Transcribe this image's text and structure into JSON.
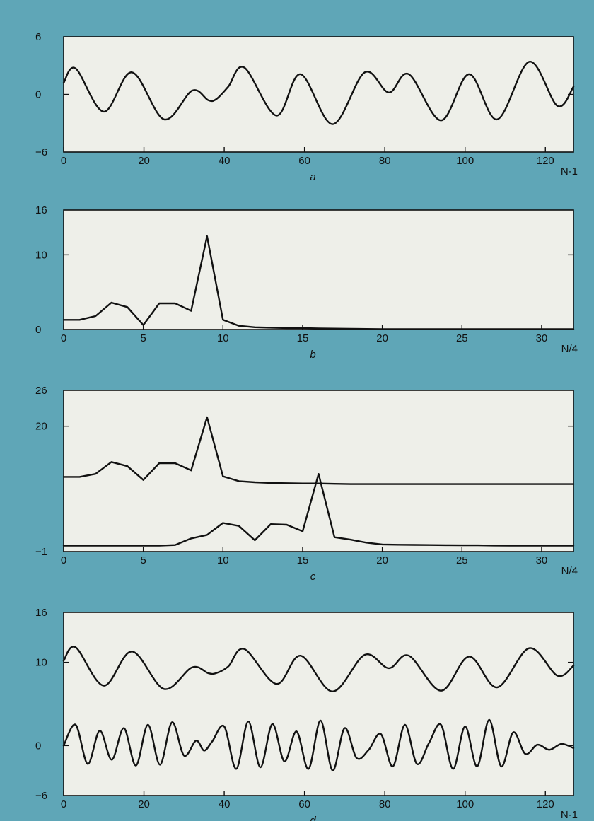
{
  "chart_data": [
    {
      "panel": "a",
      "type": "line",
      "caption": "a",
      "x_end_label": "N-1",
      "xlim": [
        0,
        127
      ],
      "ylim": [
        -6,
        6
      ],
      "x_ticks": [
        0,
        20,
        40,
        60,
        80,
        100,
        120
      ],
      "y_ticks": [
        -6,
        0,
        6
      ],
      "y_tick_labels": [
        "−6",
        "0",
        "6"
      ],
      "series": [
        {
          "x": [
            0,
            3,
            10,
            17,
            25,
            32,
            36,
            38,
            41,
            45,
            53,
            59,
            67,
            75,
            81,
            86,
            94,
            101,
            108,
            116,
            123,
            127
          ],
          "y": [
            1.2,
            2.7,
            -1.8,
            2.3,
            -2.6,
            0.4,
            -0.6,
            -0.5,
            0.8,
            2.8,
            -2.2,
            2.1,
            -3.1,
            2.3,
            0.2,
            2.1,
            -2.7,
            2.1,
            -2.6,
            3.4,
            -1.2,
            0.8
          ]
        }
      ]
    },
    {
      "panel": "b",
      "type": "line",
      "caption": "b",
      "x_end_label": "N/4",
      "xlim": [
        0,
        32
      ],
      "ylim": [
        0,
        16
      ],
      "x_ticks": [
        0,
        5,
        10,
        15,
        20,
        25,
        30
      ],
      "y_ticks": [
        0,
        10,
        16
      ],
      "y_tick_labels": [
        "0",
        "10",
        "16"
      ],
      "series": [
        {
          "x": [
            0,
            1,
            2,
            3,
            4,
            5,
            6,
            7,
            8,
            9,
            10,
            11,
            12,
            13,
            14,
            15,
            16,
            17,
            18,
            19,
            20,
            21,
            22,
            23,
            24,
            25,
            26,
            27,
            28,
            29,
            30,
            31,
            32
          ],
          "y": [
            1.3,
            1.3,
            1.8,
            3.6,
            3.0,
            0.6,
            3.5,
            3.5,
            2.5,
            12.5,
            1.3,
            0.5,
            0.3,
            0.25,
            0.2,
            0.2,
            0.15,
            0.12,
            0.1,
            0.08,
            0.05,
            0.05,
            0.05,
            0.05,
            0.05,
            0.05,
            0.05,
            0.05,
            0.05,
            0.05,
            0.05,
            0.05,
            0.05
          ]
        }
      ]
    },
    {
      "panel": "c",
      "type": "line",
      "caption": "c",
      "x_end_label": "N/4",
      "xlim": [
        0,
        32
      ],
      "ylim": [
        -1,
        26
      ],
      "x_ticks": [
        0,
        5,
        10,
        15,
        20,
        25,
        30
      ],
      "y_ticks": [
        -1,
        20,
        26
      ],
      "y_tick_labels": [
        "−1",
        "20",
        "26"
      ],
      "series": [
        {
          "x": [
            0,
            1,
            2,
            3,
            4,
            5,
            6,
            7,
            8,
            9,
            10,
            11,
            12,
            13,
            14,
            15,
            16,
            17,
            18,
            19,
            20,
            21,
            22,
            23,
            24,
            25,
            26,
            27,
            28,
            29,
            30,
            31,
            32
          ],
          "y": [
            11.5,
            11.5,
            12,
            14,
            13.3,
            11,
            13.8,
            13.8,
            12.6,
            21.5,
            11.6,
            10.8,
            10.6,
            10.5,
            10.45,
            10.4,
            10.4,
            10.35,
            10.3,
            10.3,
            10.3,
            10.3,
            10.3,
            10.3,
            10.3,
            10.3,
            10.3,
            10.3,
            10.3,
            10.3,
            10.3,
            10.3,
            10.3
          ]
        },
        {
          "x": [
            0,
            1,
            2,
            3,
            4,
            5,
            6,
            7,
            8,
            9,
            10,
            11,
            12,
            13,
            14,
            15,
            16,
            17,
            18,
            19,
            20,
            21,
            22,
            23,
            24,
            25,
            26,
            27,
            28,
            29,
            30,
            31,
            32
          ],
          "y": [
            0,
            0,
            0,
            0,
            0,
            0,
            0,
            0.1,
            1.2,
            1.8,
            3.8,
            3.3,
            0.9,
            3.6,
            3.5,
            2.4,
            12,
            1.4,
            1.0,
            0.5,
            0.2,
            0.15,
            0.12,
            0.1,
            0.08,
            0.05,
            0.05,
            0.02,
            0,
            0,
            0,
            0,
            0
          ]
        }
      ]
    },
    {
      "panel": "d",
      "type": "line",
      "caption": "d",
      "x_end_label": "N-1",
      "xlim": [
        0,
        127
      ],
      "ylim": [
        -6,
        16
      ],
      "x_ticks": [
        0,
        20,
        40,
        60,
        80,
        100,
        120
      ],
      "y_ticks": [
        -6,
        0,
        10,
        16
      ],
      "y_tick_labels": [
        "−6",
        "0",
        "10",
        "16"
      ],
      "series": [
        {
          "x": [
            0,
            3,
            10,
            17,
            25,
            32,
            36,
            38,
            41,
            45,
            53,
            59,
            67,
            75,
            81,
            86,
            94,
            101,
            108,
            116,
            123,
            127
          ],
          "y": [
            10.2,
            11.8,
            7.2,
            11.3,
            6.8,
            9.4,
            8.7,
            8.7,
            9.5,
            11.6,
            7.4,
            10.8,
            6.5,
            10.9,
            9.3,
            10.8,
            6.6,
            10.7,
            7.0,
            11.7,
            8.4,
            9.6
          ]
        },
        {
          "x": [
            0,
            3,
            6,
            9,
            12,
            15,
            18,
            21,
            24,
            27,
            30,
            33,
            35,
            37,
            40,
            43,
            46,
            49,
            52,
            55,
            58,
            61,
            64,
            67,
            70,
            73,
            76,
            79,
            82,
            85,
            88,
            91,
            94,
            97,
            100,
            103,
            106,
            109,
            112,
            115,
            118,
            121,
            124,
            127
          ],
          "y": [
            0,
            2.5,
            -2.2,
            1.8,
            -1.7,
            2.1,
            -2.4,
            2.5,
            -2.3,
            2.8,
            -1.2,
            0.6,
            -0.6,
            0.5,
            2.3,
            -2.8,
            2.9,
            -2.6,
            2.6,
            -1.9,
            1.7,
            -2.8,
            3.0,
            -3.0,
            2.1,
            -1.5,
            -0.5,
            1.4,
            -2.5,
            2.5,
            -2.2,
            0.3,
            2.5,
            -2.8,
            2.3,
            -2.5,
            3.1,
            -2.5,
            1.6,
            -1.0,
            0.1,
            -0.5,
            0.2,
            -0.3
          ]
        }
      ]
    }
  ]
}
